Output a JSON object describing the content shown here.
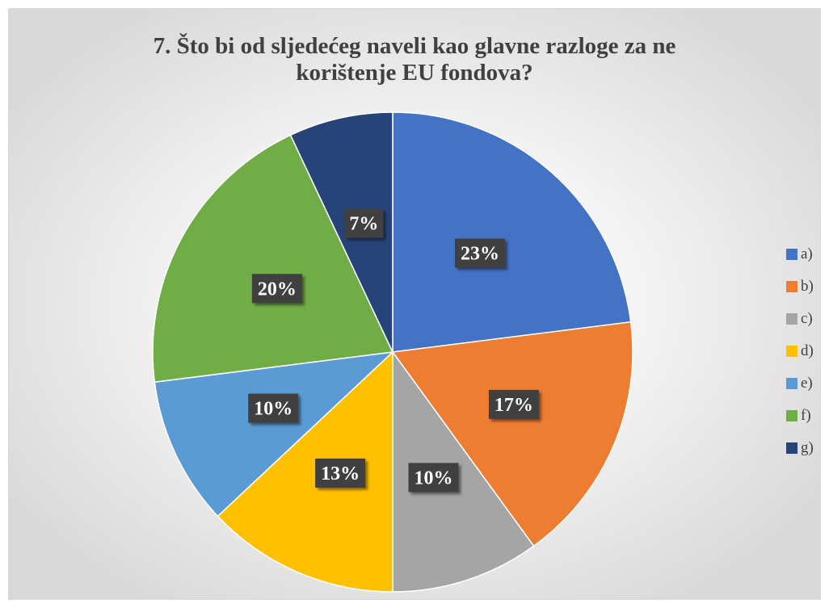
{
  "chart_data": {
    "type": "pie",
    "title": "7. Što bi od sljedećeg naveli kao glavne razloge za ne\nkorištenje EU fondova?",
    "categories": [
      "a)",
      "b)",
      "c)",
      "d)",
      "e)",
      "f)",
      "g)"
    ],
    "values": [
      23,
      17,
      10,
      13,
      10,
      20,
      7
    ],
    "labels": [
      "23%",
      "17%",
      "10%",
      "13%",
      "10%",
      "20%",
      "7%"
    ],
    "colors": [
      "#4472C4",
      "#ED7D31",
      "#A5A5A5",
      "#FFC000",
      "#5B9BD5",
      "#70AD47",
      "#264478"
    ],
    "legend_position": "right"
  }
}
